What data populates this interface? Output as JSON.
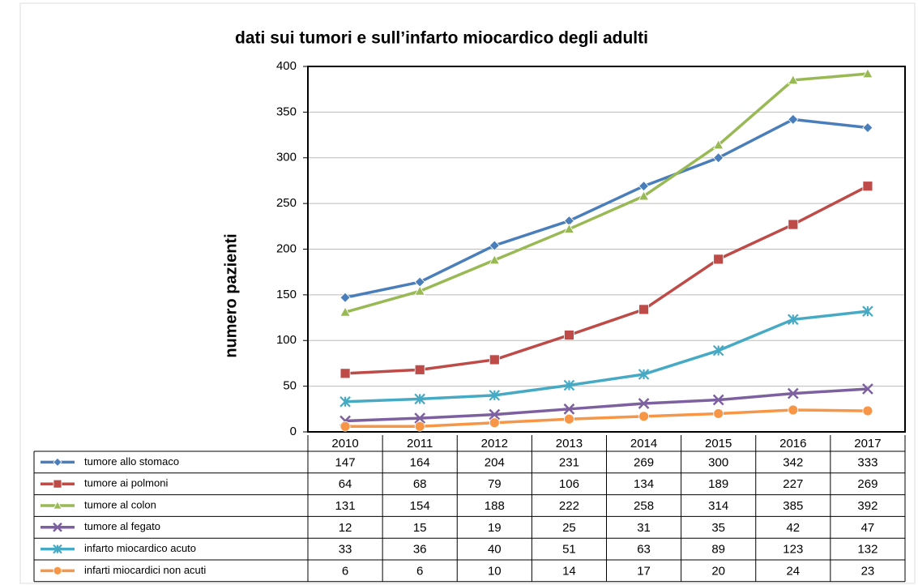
{
  "chart_data": {
    "type": "line",
    "title": "dati sui tumori e sull’infarto miocardico degli adulti",
    "y_label": "numero pazienti",
    "categories": [
      "2010",
      "2011",
      "2012",
      "2013",
      "2014",
      "2015",
      "2016",
      "2017"
    ],
    "series": [
      {
        "name": "tumore allo stomaco",
        "color": "#4a7ebb",
        "marker": "diamond",
        "values": [
          147,
          164,
          204,
          231,
          269,
          300,
          342,
          333
        ]
      },
      {
        "name": "tumore ai polmoni",
        "color": "#be4b48",
        "marker": "square",
        "values": [
          64,
          68,
          79,
          106,
          134,
          189,
          227,
          269
        ]
      },
      {
        "name": "tumore al colon",
        "color": "#98b954",
        "marker": "triangle",
        "values": [
          131,
          154,
          188,
          222,
          258,
          314,
          385,
          392
        ]
      },
      {
        "name": "tumore al fegato",
        "color": "#7d60a0",
        "marker": "x",
        "values": [
          12,
          15,
          19,
          25,
          31,
          35,
          42,
          47
        ]
      },
      {
        "name": "infarto miocardico acuto",
        "color": "#46aac5",
        "marker": "star",
        "values": [
          33,
          36,
          40,
          51,
          63,
          89,
          123,
          132
        ]
      },
      {
        "name": "infarti miocardici non acuti",
        "color": "#f79646",
        "marker": "circle",
        "values": [
          6,
          6,
          10,
          14,
          17,
          20,
          24,
          23
        ]
      }
    ],
    "ylim": [
      0,
      400
    ],
    "yticks": [
      0,
      50,
      100,
      150,
      200,
      250,
      300,
      350,
      400
    ],
    "grid": true
  }
}
